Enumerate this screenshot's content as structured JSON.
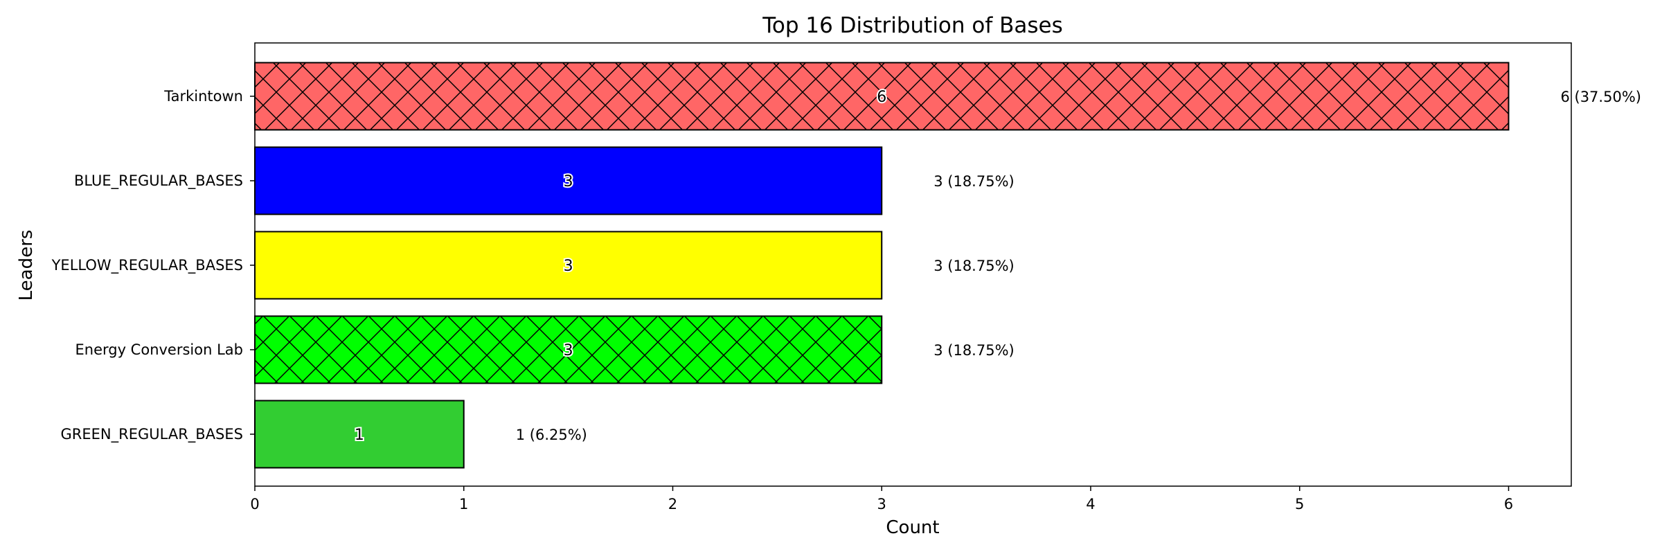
{
  "chart_data": {
    "type": "bar",
    "orientation": "horizontal",
    "title": "Top 16 Distribution of Bases",
    "xlabel": "Count",
    "ylabel": "Leaders",
    "xlim": [
      0,
      6.3
    ],
    "x_ticks": [
      "0",
      "1",
      "2",
      "3",
      "4",
      "5",
      "6"
    ],
    "categories": [
      "Tarkintown",
      "BLUE_REGULAR_BASES",
      "YELLOW_REGULAR_BASES",
      "Energy Conversion Lab",
      "GREEN_REGULAR_BASES"
    ],
    "values": [
      6,
      3,
      3,
      3,
      1
    ],
    "bar_labels": [
      "6",
      "3",
      "3",
      "3",
      "1"
    ],
    "annotations": [
      "6 (37.50%)",
      "3 (18.75%)",
      "3 (18.75%)",
      "3 (18.75%)",
      "1 (6.25%)"
    ],
    "colors": [
      "#ff6666",
      "#0000ff",
      "#ffff00",
      "#00ff00",
      "#32cd32"
    ],
    "hatch": [
      "x",
      "",
      "",
      "x",
      ""
    ],
    "grid": false,
    "legend": false
  }
}
